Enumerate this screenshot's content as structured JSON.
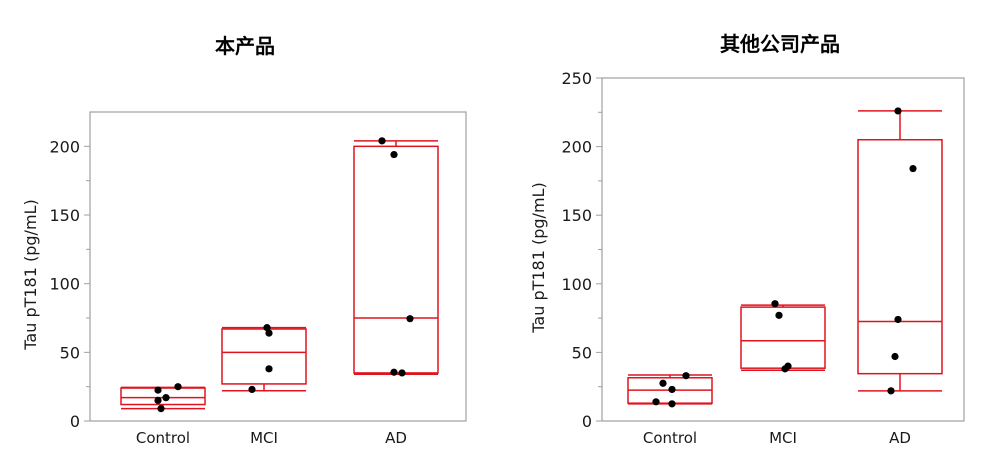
{
  "chart_data": [
    {
      "type": "box",
      "title": "本产品",
      "xlabel": "",
      "ylabel": "Tau pT181 (pg/mL)",
      "categories": [
        "Control",
        "MCI",
        "AD"
      ],
      "ylim": [
        0,
        225
      ],
      "yticks": [
        0,
        50,
        100,
        150,
        200
      ],
      "minor_ticks": [
        25,
        75,
        125,
        175
      ],
      "grid": false,
      "box_color": "#e0141e",
      "point_color": "#000000",
      "boxes": [
        {
          "category": "Control",
          "whisker_low": 9,
          "q1": 12,
          "median": 17,
          "q3": 24,
          "whisker_high": 24.5,
          "points": [
            25,
            22.5,
            17,
            15,
            9
          ]
        },
        {
          "category": "MCI",
          "whisker_low": 22,
          "q1": 27,
          "median": 50,
          "q3": 67,
          "whisker_high": 68,
          "points": [
            68,
            64,
            38,
            23
          ]
        },
        {
          "category": "AD",
          "whisker_low": 34,
          "q1": 35,
          "median": 75,
          "q3": 200,
          "whisker_high": 204,
          "points": [
            204,
            194,
            74.5,
            35.5,
            35
          ]
        }
      ]
    },
    {
      "type": "box",
      "title": "其他公司产品",
      "xlabel": "",
      "ylabel": "Tau pT181 (pg/mL)",
      "categories": [
        "Control",
        "MCI",
        "AD"
      ],
      "ylim": [
        0,
        250
      ],
      "yticks": [
        0,
        50,
        100,
        150,
        200,
        250
      ],
      "minor_ticks": [
        25,
        75,
        125,
        175,
        225
      ],
      "grid": false,
      "box_color": "#e0141e",
      "point_color": "#000000",
      "boxes": [
        {
          "category": "Control",
          "whisker_low": 12.5,
          "q1": 13,
          "median": 22.5,
          "q3": 31.5,
          "whisker_high": 33.5,
          "points": [
            33,
            27.5,
            23,
            14,
            12.5
          ]
        },
        {
          "category": "MCI",
          "whisker_low": 37,
          "q1": 38.5,
          "median": 58.5,
          "q3": 83,
          "whisker_high": 84.5,
          "points": [
            85.5,
            77,
            40,
            38
          ]
        },
        {
          "category": "AD",
          "whisker_low": 22,
          "q1": 34.5,
          "median": 72.5,
          "q3": 205,
          "whisker_high": 226,
          "points": [
            226,
            184,
            74,
            47,
            22
          ]
        }
      ]
    }
  ],
  "panels": [
    {
      "title": "本产品",
      "ylabel": "Tau pT181 (pg/mL)"
    },
    {
      "title": "其他公司产品",
      "ylabel": "Tau pT181 (pg/mL)"
    }
  ]
}
